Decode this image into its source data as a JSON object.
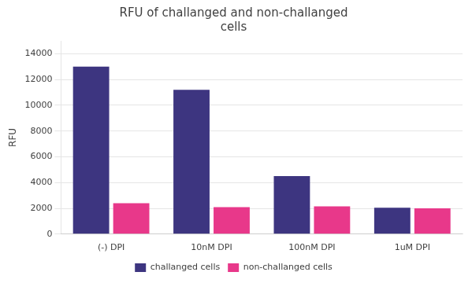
{
  "chart_data": {
    "type": "bar",
    "title": "RFU of challanged and non-challanged\ncells",
    "ylabel": "RFU",
    "categories": [
      "(-) DPI",
      "10nM DPI",
      "100nM DPI",
      "1uM DPI"
    ],
    "series": [
      {
        "name": "challanged cells",
        "color": "#3d3580",
        "values": [
          13000,
          11200,
          4500,
          2050
        ]
      },
      {
        "name": "non-challanged cells",
        "color": "#e8388a",
        "values": [
          2400,
          2100,
          2150,
          2000
        ]
      }
    ],
    "ylim": [
      0,
      15000
    ],
    "yticks": [
      0,
      2000,
      4000,
      6000,
      8000,
      10000,
      12000,
      14000
    ],
    "grid": true,
    "legend": "bottom"
  }
}
